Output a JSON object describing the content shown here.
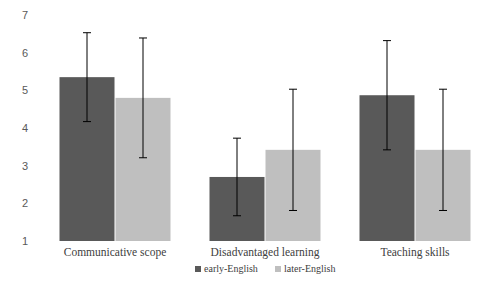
{
  "chart_data": {
    "type": "bar",
    "categories": [
      "Communicative scope",
      "Disadvantaged learning",
      "Teaching skills"
    ],
    "series": [
      {
        "name": "early-English",
        "color": "#595959",
        "values": [
          5.35,
          2.7,
          4.87
        ],
        "errors": [
          1.18,
          1.03,
          1.45
        ]
      },
      {
        "name": "later-English",
        "color": "#bfbfbf",
        "values": [
          4.8,
          3.42,
          3.42
        ],
        "errors": [
          1.59,
          1.61,
          1.61
        ]
      }
    ],
    "ylim": [
      1,
      7
    ],
    "yticks": [
      1,
      2,
      3,
      4,
      5,
      6,
      7
    ],
    "grid": false,
    "legend": "bottom"
  }
}
